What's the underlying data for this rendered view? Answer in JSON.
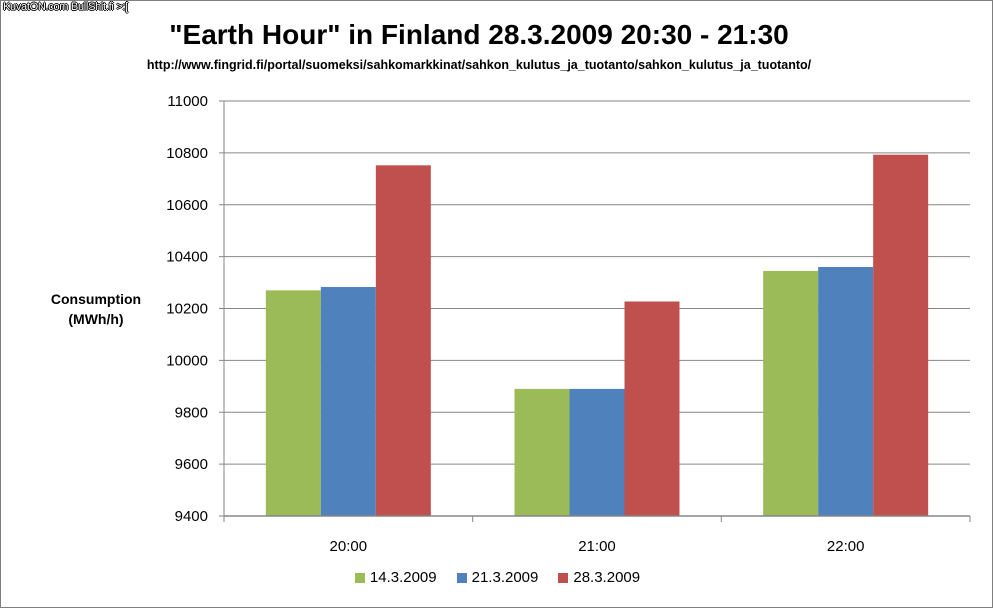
{
  "watermark": "KuvatON.com BullShit.fi >:[",
  "chart_data": {
    "type": "bar",
    "title": "\"Earth Hour\" in Finland 28.3.2009 20:30 - 21:30",
    "subtitle": "http://www.fingrid.fi/portal/suomeksi/sahkomarkkinat/sahkon_kulutus_ja_tuotanto/sahkon_kulutus_ja_tuotanto/",
    "ylabel_line1": "Consumption",
    "ylabel_line2": "(MWh/h)",
    "xlabel": "",
    "categories": [
      "20:00",
      "21:00",
      "22:00"
    ],
    "ylim": [
      9400,
      11000
    ],
    "yticks": [
      9400,
      9600,
      9800,
      10000,
      10200,
      10400,
      10600,
      10800,
      11000
    ],
    "grid": true,
    "legend_position": "bottom",
    "series": [
      {
        "name": "14.3.2009",
        "color": "#9bbb59",
        "values": [
          10270,
          9890,
          10345
        ]
      },
      {
        "name": "21.3.2009",
        "color": "#4f81bd",
        "values": [
          10283,
          9890,
          10360
        ]
      },
      {
        "name": "28.3.2009",
        "color": "#c0504d",
        "values": [
          10752,
          10227,
          10793
        ]
      }
    ]
  }
}
